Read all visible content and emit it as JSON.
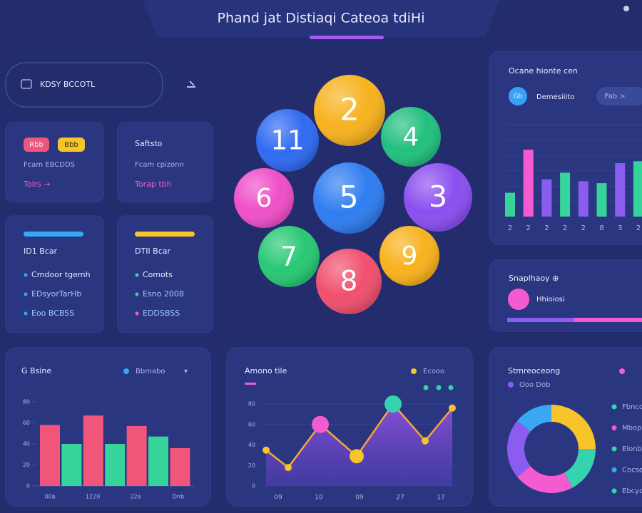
{
  "header": {
    "title": "Phand jat Distiaqi Cateoa tdiHi"
  },
  "search": {
    "label": "KDSY BCCOTL"
  },
  "cards": [
    {
      "pills": [
        "Rbb",
        "Bbb"
      ],
      "subtitle": "Fcam EBCDDS",
      "link": "Tolrs →"
    },
    {
      "title": "Saftsto",
      "subtitle": "Fcam cpizonn",
      "link": "Torap tbh"
    }
  ],
  "lists": [
    {
      "title": "ID1 Bcar",
      "color": "#38a8f5",
      "items": [
        "Cmdoor tgemh",
        "EDsyorTarHb",
        "Eoo BCBSS"
      ],
      "bullets": [
        "#38a8f5",
        "#38a8f5",
        "#38a8f5"
      ]
    },
    {
      "title": "DTII Bcar",
      "color": "#f7c52a",
      "items": [
        "Comots",
        "Esno 2008",
        "EDDSBSS"
      ],
      "bullets": [
        "#36d39a",
        "#36d39a",
        "#f55bd0"
      ]
    }
  ],
  "balls": [
    {
      "label": "2",
      "color": "#f7b21e"
    },
    {
      "label": "11",
      "color": "#2f6af0"
    },
    {
      "label": "4",
      "color": "#22c07e"
    },
    {
      "label": "6",
      "color": "#ef4fc8"
    },
    {
      "label": "5",
      "color": "#2f7df0"
    },
    {
      "label": "3",
      "color": "#8b4ff0"
    },
    {
      "label": "7",
      "color": "#28c873"
    },
    {
      "label": "9",
      "color": "#f7b21e"
    },
    {
      "label": "8",
      "color": "#f0506e"
    }
  ],
  "stats_panel": {
    "title": "Ocane hionte cen",
    "avatar": "Gb",
    "name": "Demesiiito",
    "button": "Pab >",
    "chart": {
      "type": "bar",
      "categories": [
        "2",
        "2",
        "2",
        "2",
        "2",
        "8",
        "3",
        "2"
      ],
      "values": [
        25,
        70,
        39,
        46,
        37,
        35,
        56,
        58
      ],
      "colors": [
        "#36d39a",
        "#f55bd0",
        "#8a5cf0",
        "#36d39a",
        "#8a5cf0",
        "#36d39a",
        "#8a5cf0",
        "#36d39a"
      ],
      "ylim": [
        0,
        100
      ]
    }
  },
  "snapshot": {
    "title": "Snaplhaoy ⊕",
    "item": "Hhioiosi"
  },
  "bar_panel": {
    "title": "G Bsine",
    "legend": "Bbmabo",
    "menu": "▾",
    "chart": {
      "type": "bar",
      "values": [
        58,
        40,
        67,
        40,
        57,
        47,
        36
      ],
      "colors": [
        "#f0567a",
        "#36d39a",
        "#f0567a",
        "#36d39a",
        "#f0567a",
        "#36d39a",
        "#f0567a"
      ],
      "x_labels": [
        "00a",
        "1220",
        "22a",
        "Dnb"
      ],
      "ylim": [
        0,
        80
      ],
      "yticks": [
        80,
        60,
        40,
        20,
        0
      ]
    }
  },
  "line_panel": {
    "title": "Amono tile",
    "legend": "Ecooo",
    "chart": {
      "type": "line",
      "values": [
        35,
        18,
        60,
        29,
        80,
        44,
        76
      ],
      "color": "#f7a63a",
      "point_colors": [
        "#f7c52a",
        "#f7c52a",
        "#f55bd0",
        "#f7c52a",
        "#36d3b0",
        "#f7c52a",
        "#f7c52a"
      ],
      "x_labels": [
        "09",
        "10",
        "09",
        "27",
        "17"
      ],
      "ylim": [
        0,
        80
      ],
      "yticks": [
        80,
        60,
        40,
        20,
        0
      ]
    }
  },
  "donut_panel": {
    "title": "Stmreoceong",
    "subtitle": "Ooo Dob",
    "chart": {
      "type": "pie",
      "values": [
        25,
        17,
        22,
        22,
        14
      ],
      "colors": [
        "#f7c52a",
        "#36d3b0",
        "#f55bd0",
        "#8a5cf0",
        "#38a8f5"
      ],
      "legend": [
        {
          "name": "Fbnco",
          "color": "#36d3b0"
        },
        {
          "name": "Mbop",
          "color": "#f55bd0"
        },
        {
          "name": "Elonb",
          "color": "#36d3b0"
        },
        {
          "name": "Cocse",
          "color": "#38a8f5"
        },
        {
          "name": "Ebcyd",
          "color": "#36d3b0"
        }
      ]
    }
  }
}
